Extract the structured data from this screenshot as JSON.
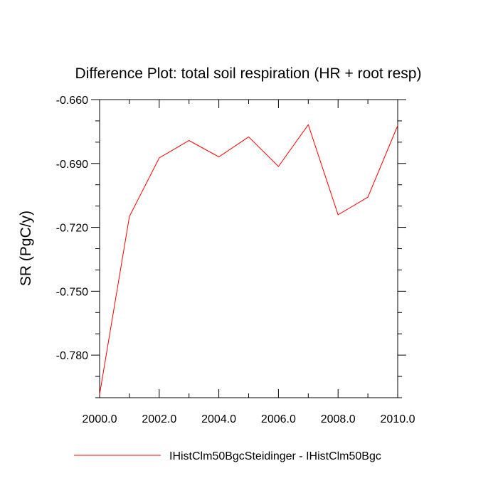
{
  "chart_data": {
    "type": "line",
    "title": "Difference Plot: total soil respiration (HR + root resp)",
    "xlabel": "",
    "ylabel": "SR  (PgC/y)",
    "xlim": [
      2000.0,
      2010.0
    ],
    "ylim": [
      -0.8,
      -0.66
    ],
    "x_ticks": [
      2000.0,
      2002.0,
      2004.0,
      2006.0,
      2008.0,
      2010.0
    ],
    "x_tick_labels": [
      "2000.0",
      "2002.0",
      "2004.0",
      "2006.0",
      "2008.0",
      "2010.0"
    ],
    "y_ticks": [
      -0.66,
      -0.69,
      -0.72,
      -0.75,
      -0.78
    ],
    "y_tick_labels": [
      "-0.660",
      "-0.690",
      "-0.720",
      "-0.750",
      "-0.780"
    ],
    "grid": false,
    "legend_position": "bottom",
    "series": [
      {
        "name": "IHistClm50BgcSteidinger - IHistClm50Bgc",
        "color": "#ff0000",
        "x": [
          2000,
          2001,
          2002,
          2003,
          2004,
          2005,
          2006,
          2007,
          2008,
          2009,
          2010
        ],
        "values": [
          -0.7985,
          -0.7149,
          -0.6874,
          -0.6792,
          -0.6869,
          -0.6775,
          -0.6914,
          -0.6718,
          -0.7141,
          -0.7058,
          -0.6722
        ]
      }
    ]
  }
}
